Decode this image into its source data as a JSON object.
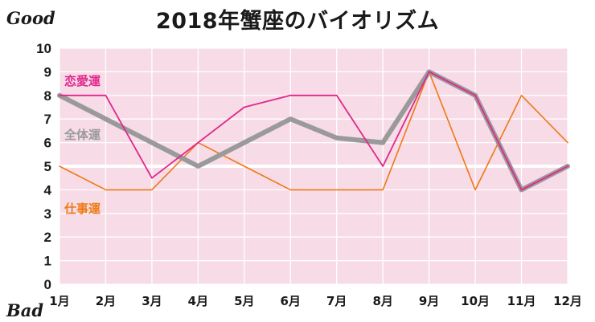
{
  "title": "2018年蟹座のバイオリズム",
  "good_label": "Good",
  "bad_label": "Bad",
  "colors": {
    "plot_bg": "#f7dbe7",
    "grid": "#ffffff",
    "love": "#e0288c",
    "overall": "#9a9a9a",
    "work": "#ee7a14"
  },
  "chart_data": {
    "type": "line",
    "title": "2018年蟹座のバイオリズム",
    "categories": [
      "1月",
      "2月",
      "3月",
      "4月",
      "5月",
      "6月",
      "7月",
      "8月",
      "9月",
      "10月",
      "11月",
      "12月"
    ],
    "yticks": [
      "0",
      "1",
      "2",
      "3",
      "4",
      "5",
      "6",
      "7",
      "8",
      "9",
      "10"
    ],
    "ylim": [
      0,
      10
    ],
    "grid": true,
    "series": [
      {
        "name": "恋愛運",
        "color": "#e0288c",
        "values": [
          8,
          8,
          4.5,
          6,
          7.5,
          8,
          8,
          5,
          9,
          8,
          4,
          5
        ]
      },
      {
        "name": "全体運",
        "color": "#9a9a9a",
        "values": [
          8,
          7,
          6,
          5,
          6,
          7,
          6.2,
          6,
          9,
          8,
          4,
          5
        ]
      },
      {
        "name": "仕事運",
        "color": "#ee7a14",
        "values": [
          5,
          4,
          4,
          6,
          5,
          4,
          4,
          4,
          9,
          4,
          8,
          6
        ]
      }
    ]
  }
}
